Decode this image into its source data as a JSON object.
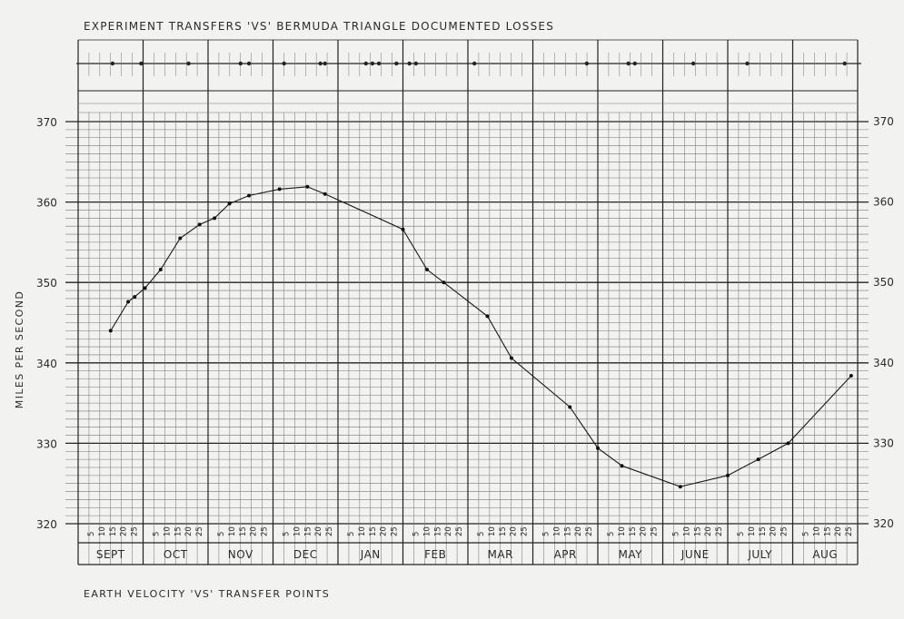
{
  "chart_data": {
    "type": "line",
    "title": "EXPERIMENT TRANSFERS 'VS' BERMUDA TRIANGLE DOCUMENTED LOSSES",
    "ylabel": "MILES PER SECOND",
    "xlabel": "EARTH VELOCITY 'VS' TRANSFER POINTS",
    "ylim": [
      320,
      370
    ],
    "yticks": [
      370,
      360,
      350,
      340,
      330,
      320
    ],
    "months": [
      "SEPT",
      "OCT",
      "NOV",
      "DEC",
      "JAN",
      "FEB",
      "MAR",
      "APR",
      "MAY",
      "JUNE",
      "JULY",
      "AUG"
    ],
    "day_ticks": [
      "5",
      "10",
      "15",
      "20",
      "25"
    ],
    "grid": true,
    "series": [
      {
        "points": [
          {
            "x": 0.5,
            "y": 344.0
          },
          {
            "x": 0.77,
            "y": 347.6
          },
          {
            "x": 0.87,
            "y": 348.2
          },
          {
            "x": 1.03,
            "y": 349.3
          },
          {
            "x": 1.27,
            "y": 351.6
          },
          {
            "x": 1.57,
            "y": 355.5
          },
          {
            "x": 1.87,
            "y": 357.2
          },
          {
            "x": 2.1,
            "y": 358.0
          },
          {
            "x": 2.33,
            "y": 359.8
          },
          {
            "x": 2.63,
            "y": 360.8
          },
          {
            "x": 3.1,
            "y": 361.6
          },
          {
            "x": 3.53,
            "y": 361.9
          },
          {
            "x": 3.8,
            "y": 361.0
          },
          {
            "x": 5.0,
            "y": 356.6
          },
          {
            "x": 5.37,
            "y": 351.6
          },
          {
            "x": 5.63,
            "y": 350.0
          },
          {
            "x": 6.3,
            "y": 345.8
          },
          {
            "x": 6.67,
            "y": 340.6
          },
          {
            "x": 7.57,
            "y": 334.5
          },
          {
            "x": 8.0,
            "y": 329.4
          },
          {
            "x": 8.37,
            "y": 327.2
          },
          {
            "x": 9.27,
            "y": 324.6
          },
          {
            "x": 10.0,
            "y": 326.0
          },
          {
            "x": 10.47,
            "y": 328.0
          },
          {
            "x": 10.93,
            "y": 330.0
          },
          {
            "x": 11.9,
            "y": 338.4
          }
        ]
      }
    ],
    "transfer_marks": [
      0.53,
      0.97,
      1.7,
      2.5,
      2.63,
      3.17,
      3.73,
      3.8,
      4.43,
      4.53,
      4.63,
      4.9,
      5.1,
      5.2,
      6.1,
      7.83,
      8.47,
      8.57,
      9.47,
      10.3,
      11.8
    ]
  }
}
